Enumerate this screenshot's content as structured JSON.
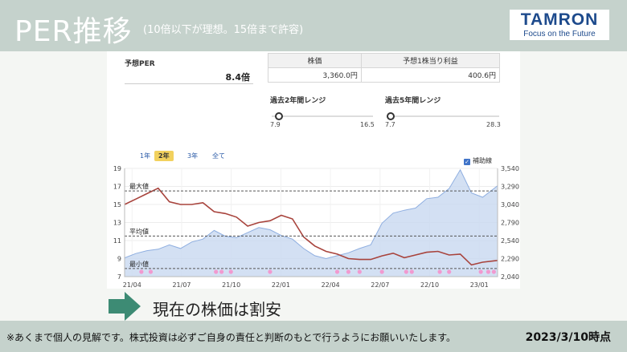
{
  "header": {
    "title": "PER推移",
    "subtitle": "(10倍以下が理想。15倍まで許容)",
    "logo_name": "TAMRON",
    "logo_tagline": "Focus on the Future"
  },
  "stats": {
    "per_label": "予想PER",
    "per_value": "8.4倍",
    "price_header": "株価",
    "price_value": "3,360.0円",
    "eps_header": "予想1株当り利益",
    "eps_value": "400.6円"
  },
  "ranges": [
    {
      "label": "過去2年間レンジ",
      "min": "7.9",
      "max": "16.5",
      "position": 0.06
    },
    {
      "label": "過去5年間レンジ",
      "min": "7.7",
      "max": "28.3",
      "position": 0.03
    }
  ],
  "tabs": [
    "1年",
    "2年",
    "3年",
    "全て"
  ],
  "active_tab": "2年",
  "aux_toggle": {
    "label": "補助線",
    "checked": true
  },
  "chart_data": {
    "type": "line",
    "x_ticks": [
      "21/04",
      "21/07",
      "21/10",
      "22/01",
      "22/04",
      "22/07",
      "22/10",
      "23/01"
    ],
    "y_left_ticks": [
      "19",
      "17",
      "15",
      "13",
      "11",
      "9",
      "7"
    ],
    "y_left_range": [
      7,
      19
    ],
    "y_right_ticks": [
      "3,540",
      "3,290",
      "3,040",
      "2,790",
      "2,540",
      "2,290",
      "2,040"
    ],
    "y_right_range": [
      2040,
      3540
    ],
    "reference_lines": [
      {
        "label": "最大値",
        "value": 16.5
      },
      {
        "label": "平均値",
        "value": 11.5
      },
      {
        "label": "最小値",
        "value": 7.9
      }
    ],
    "series": [
      {
        "axis": "left",
        "color": "#a8433c",
        "x": [
          0,
          0.03,
          0.06,
          0.09,
          0.12,
          0.15,
          0.18,
          0.21,
          0.24,
          0.27,
          0.3,
          0.33,
          0.36,
          0.39,
          0.42,
          0.45,
          0.48,
          0.51,
          0.54,
          0.57,
          0.6,
          0.63,
          0.66,
          0.69,
          0.72,
          0.75,
          0.78,
          0.81,
          0.84,
          0.87,
          0.9,
          0.93,
          0.96,
          1.0
        ],
        "values": [
          15,
          15.6,
          16.2,
          16.8,
          15.3,
          15,
          15,
          15.2,
          14.2,
          14,
          13.6,
          12.6,
          13,
          13.2,
          13.8,
          13.4,
          11.4,
          10.4,
          9.8,
          9.5,
          9.0,
          8.9,
          8.9,
          9.3,
          9.6,
          9.1,
          9.4,
          9.7,
          9.8,
          9.4,
          9.5,
          8.3,
          8.6,
          8.8
        ]
      },
      {
        "axis": "right",
        "color": "#8eaee0",
        "x": [
          0,
          0.03,
          0.06,
          0.09,
          0.12,
          0.15,
          0.18,
          0.21,
          0.24,
          0.27,
          0.3,
          0.33,
          0.36,
          0.39,
          0.42,
          0.45,
          0.48,
          0.51,
          0.54,
          0.57,
          0.6,
          0.63,
          0.66,
          0.69,
          0.72,
          0.75,
          0.78,
          0.81,
          0.84,
          0.87,
          0.9,
          0.93,
          0.96,
          1.0
        ],
        "values": [
          2300,
          2360,
          2400,
          2420,
          2480,
          2430,
          2520,
          2560,
          2680,
          2600,
          2580,
          2650,
          2720,
          2690,
          2610,
          2560,
          2430,
          2330,
          2290,
          2330,
          2370,
          2430,
          2480,
          2780,
          2920,
          2960,
          2990,
          3120,
          3140,
          3260,
          3520,
          3200,
          3140,
          3300
        ]
      }
    ],
    "markers_x": [
      0.045,
      0.07,
      0.245,
      0.26,
      0.285,
      0.39,
      0.57,
      0.6,
      0.63,
      0.69,
      0.755,
      0.77,
      0.845,
      0.87,
      0.955,
      0.975,
      0.99
    ]
  },
  "verdict": "現在の株価は割安",
  "footer": {
    "disclaimer": "※あくまで個人の見解です。株式投資は必ずご自身の責任と判断のもとで行うようにお願いいたします。",
    "date": "2023/3/10時点"
  }
}
